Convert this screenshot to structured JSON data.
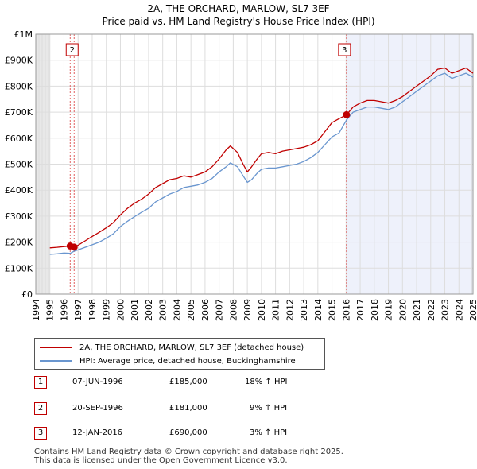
{
  "chart_data": {
    "type": "line",
    "title": "2A, THE ORCHARD, MARLOW, SL7 3EF",
    "subtitle": "Price paid vs. HM Land Registry's House Price Index (HPI)",
    "xlabel": "",
    "ylabel": "",
    "xlim": [
      1994,
      2025
    ],
    "ylim": [
      0,
      1000000
    ],
    "x_ticks": [
      1994,
      1995,
      1996,
      1997,
      1998,
      1999,
      2000,
      2001,
      2002,
      2003,
      2004,
      2005,
      2006,
      2007,
      2008,
      2009,
      2010,
      2011,
      2012,
      2013,
      2014,
      2015,
      2016,
      2017,
      2018,
      2019,
      2020,
      2021,
      2022,
      2023,
      2024,
      2025
    ],
    "y_ticks": [
      {
        "value": 0,
        "label": "£0"
      },
      {
        "value": 100000,
        "label": "£100K"
      },
      {
        "value": 200000,
        "label": "£200K"
      },
      {
        "value": 300000,
        "label": "£300K"
      },
      {
        "value": 400000,
        "label": "£400K"
      },
      {
        "value": 500000,
        "label": "£500K"
      },
      {
        "value": 600000,
        "label": "£600K"
      },
      {
        "value": 700000,
        "label": "£700K"
      },
      {
        "value": 800000,
        "label": "£800K"
      },
      {
        "value": 900000,
        "label": "£900K"
      },
      {
        "value": 1000000,
        "label": "£1M"
      }
    ],
    "series": [
      {
        "name": "2A, THE ORCHARD, MARLOW, SL7 3EF (detached house)",
        "color": "#c00000",
        "x": [
          1995.0,
          1995.5,
          1996.0,
          1996.44,
          1996.72,
          1997.0,
          1997.5,
          1998.0,
          1998.5,
          1999.0,
          1999.5,
          2000.0,
          2000.5,
          2001.0,
          2001.5,
          2002.0,
          2002.5,
          2003.0,
          2003.5,
          2004.0,
          2004.5,
          2005.0,
          2005.5,
          2006.0,
          2006.5,
          2007.0,
          2007.5,
          2007.8,
          2008.3,
          2008.7,
          2009.0,
          2009.3,
          2009.7,
          2010.0,
          2010.5,
          2011.0,
          2011.5,
          2012.0,
          2012.5,
          2013.0,
          2013.5,
          2014.0,
          2014.5,
          2015.0,
          2015.5,
          2016.03,
          2016.5,
          2017.0,
          2017.5,
          2018.0,
          2018.5,
          2019.0,
          2019.5,
          2020.0,
          2020.5,
          2021.0,
          2021.5,
          2022.0,
          2022.5,
          2023.0,
          2023.5,
          2024.0,
          2024.5,
          2025.0
        ],
        "values": [
          178000,
          180000,
          183000,
          185000,
          181000,
          188000,
          205000,
          222000,
          238000,
          255000,
          275000,
          305000,
          330000,
          350000,
          365000,
          385000,
          410000,
          425000,
          440000,
          445000,
          455000,
          450000,
          460000,
          470000,
          490000,
          520000,
          555000,
          570000,
          545000,
          500000,
          470000,
          490000,
          520000,
          540000,
          545000,
          540000,
          550000,
          555000,
          560000,
          565000,
          575000,
          590000,
          625000,
          660000,
          675000,
          690000,
          720000,
          735000,
          745000,
          745000,
          740000,
          735000,
          745000,
          760000,
          780000,
          800000,
          820000,
          840000,
          865000,
          870000,
          850000,
          860000,
          870000,
          850000
        ]
      },
      {
        "name": "HPI: Average price, detached house, Buckinghamshire",
        "color": "#6a96cf",
        "x": [
          1995.0,
          1995.5,
          1996.0,
          1996.44,
          1996.72,
          1997.0,
          1997.5,
          1998.0,
          1998.5,
          1999.0,
          1999.5,
          2000.0,
          2000.5,
          2001.0,
          2001.5,
          2002.0,
          2002.5,
          2003.0,
          2003.5,
          2004.0,
          2004.5,
          2005.0,
          2005.5,
          2006.0,
          2006.5,
          2007.0,
          2007.5,
          2007.8,
          2008.3,
          2008.7,
          2009.0,
          2009.3,
          2009.7,
          2010.0,
          2010.5,
          2011.0,
          2011.5,
          2012.0,
          2012.5,
          2013.0,
          2013.5,
          2014.0,
          2014.5,
          2015.0,
          2015.5,
          2016.03,
          2016.5,
          2017.0,
          2017.5,
          2018.0,
          2018.5,
          2019.0,
          2019.5,
          2020.0,
          2020.5,
          2021.0,
          2021.5,
          2022.0,
          2022.5,
          2023.0,
          2023.5,
          2024.0,
          2024.5,
          2025.0
        ],
        "values": [
          153000,
          155000,
          158000,
          157000,
          165000,
          170000,
          180000,
          190000,
          200000,
          215000,
          232000,
          260000,
          280000,
          298000,
          315000,
          330000,
          355000,
          370000,
          385000,
          395000,
          410000,
          415000,
          420000,
          430000,
          445000,
          470000,
          490000,
          505000,
          490000,
          455000,
          430000,
          440000,
          465000,
          480000,
          485000,
          485000,
          490000,
          495000,
          500000,
          510000,
          525000,
          545000,
          575000,
          605000,
          620000,
          670000,
          700000,
          710000,
          720000,
          720000,
          715000,
          710000,
          720000,
          740000,
          760000,
          780000,
          800000,
          820000,
          840000,
          850000,
          830000,
          840000,
          850000,
          835000
        ]
      }
    ],
    "transactions": [
      {
        "id": "1",
        "date": "07-JUN-1996",
        "x": 1996.44,
        "price": 185000,
        "price_label": "£185,000",
        "hpi_label": "18% ↑ HPI"
      },
      {
        "id": "2",
        "date": "20-SEP-1996",
        "x": 1996.72,
        "price": 181000,
        "price_label": "£181,000",
        "hpi_label": "9% ↑ HPI"
      },
      {
        "id": "3",
        "date": "12-JAN-2016",
        "x": 2016.03,
        "price": 690000,
        "price_label": "£690,000",
        "hpi_label": "3% ↑ HPI"
      }
    ],
    "chart_labels": [
      {
        "id": "2",
        "x": 1996.72
      },
      {
        "id": "3",
        "x": 2016.03
      }
    ],
    "shaded_ranges": [
      {
        "from": 1994,
        "to": 1995.0
      },
      {
        "from": 2016.03,
        "to": 2025
      }
    ]
  },
  "legend": {
    "property_label": "2A, THE ORCHARD, MARLOW, SL7 3EF (detached house)",
    "hpi_label": "HPI: Average price, detached house, Buckinghamshire"
  },
  "footer": {
    "line1": "Contains HM Land Registry data © Crown copyright and database right 2025.",
    "line2": "This data is licensed under the Open Government Licence v3.0."
  }
}
